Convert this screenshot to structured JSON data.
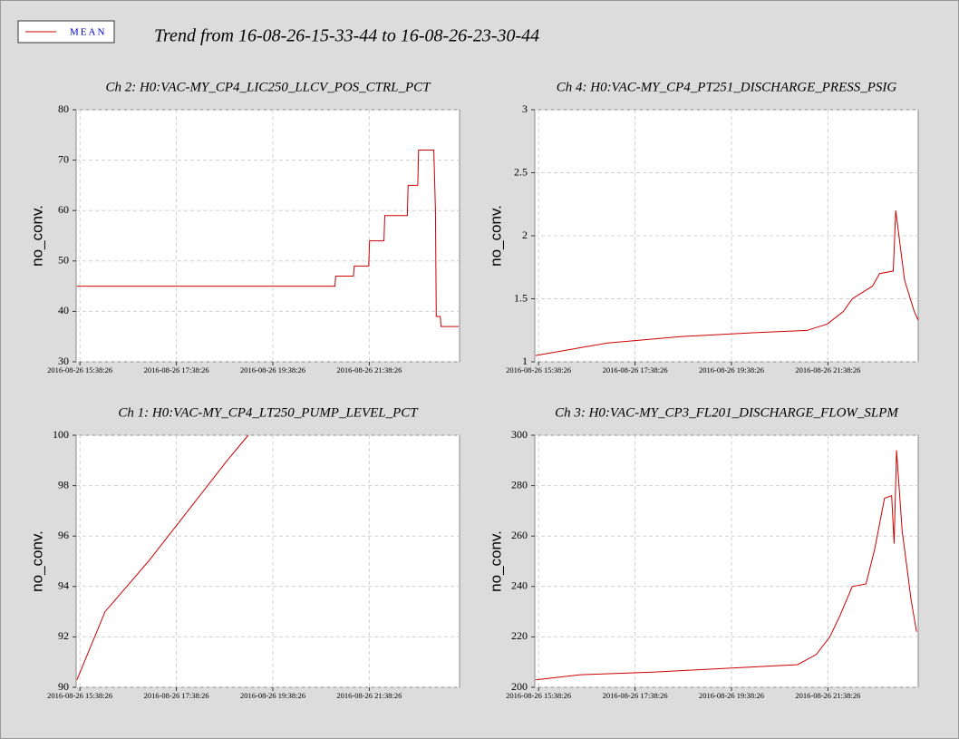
{
  "title": "Trend from 16-08-26-15-33-44 to 16-08-26-23-30-44",
  "chart_data": [
    {
      "type": "line",
      "title": "Ch 2: H0:VAC-MY_CP4_LIC250_LLCV_POS_CTRL_PCT",
      "ylabel": "no_conv.",
      "xlim": [
        "2016-08-26 15:33:44",
        "2016-08-26 23:30:44"
      ],
      "xticks": [
        "2016-08-26 15:38:26",
        "2016-08-26 17:38:26",
        "2016-08-26 19:38:26",
        "2016-08-26 21:38:26"
      ],
      "ylim": [
        30,
        80
      ],
      "yticks": [
        30,
        40,
        50,
        60,
        70,
        80
      ],
      "grid": true,
      "series": [
        {
          "name": "MEAN",
          "color": "#cc0000",
          "x": [
            "2016-08-26 15:34:44",
            "2016-08-26 20:55:44",
            "2016-08-26 20:56:44",
            "2016-08-26 21:18:44",
            "2016-08-26 21:19:44",
            "2016-08-26 21:37:44",
            "2016-08-26 21:38:44",
            "2016-08-26 21:56:44",
            "2016-08-26 21:57:44",
            "2016-08-26 22:25:44",
            "2016-08-26 22:26:44",
            "2016-08-26 22:38:44",
            "2016-08-26 22:39:44",
            "2016-08-26 22:58:44",
            "2016-08-26 23:00:44",
            "2016-08-26 23:01:44",
            "2016-08-26 23:06:44",
            "2016-08-26 23:07:44",
            "2016-08-26 23:29:44"
          ],
          "values": [
            45,
            45,
            47,
            47,
            49,
            49,
            54,
            54,
            59,
            59,
            65,
            65,
            72,
            72,
            60,
            39,
            39,
            37,
            37
          ]
        }
      ]
    },
    {
      "type": "line",
      "title": "Ch 4: H0:VAC-MY_CP4_PT251_DISCHARGE_PRESS_PSIG",
      "ylabel": "no_conv.",
      "xlim": [
        "2016-08-26 15:33:44",
        "2016-08-26 23:30:44"
      ],
      "xticks": [
        "2016-08-26 15:38:26",
        "2016-08-26 17:38:26",
        "2016-08-26 19:38:26",
        "2016-08-26 21:38:26"
      ],
      "ylim": [
        1,
        3
      ],
      "yticks": [
        1,
        1.5,
        2,
        2.5,
        3
      ],
      "grid": true,
      "series": [
        {
          "name": "MEAN",
          "color": "#cc0000",
          "x": [
            "2016-08-26 15:34:44",
            "2016-08-26 16:19:44",
            "2016-08-26 17:04:44",
            "2016-08-26 18:34:44",
            "2016-08-26 20:04:44",
            "2016-08-26 21:12:44",
            "2016-08-26 21:37:44",
            "2016-08-26 21:57:44",
            "2016-08-26 22:08:44",
            "2016-08-26 22:33:44",
            "2016-08-26 22:42:44",
            "2016-08-26 22:59:44",
            "2016-08-26 23:02:44",
            "2016-08-26 23:13:44",
            "2016-08-26 23:25:44",
            "2016-08-26 23:30:44"
          ],
          "values": [
            1.05,
            1.1,
            1.15,
            1.2,
            1.23,
            1.25,
            1.3,
            1.4,
            1.5,
            1.6,
            1.7,
            1.72,
            2.2,
            1.65,
            1.4,
            1.33
          ]
        }
      ]
    },
    {
      "type": "line",
      "title": "Ch 1: H0:VAC-MY_CP4_LT250_PUMP_LEVEL_PCT",
      "ylabel": "no_conv.",
      "xlim": [
        "2016-08-26 15:33:44",
        "2016-08-26 23:30:44"
      ],
      "xticks": [
        "2016-08-26 15:38:26",
        "2016-08-26 17:38:26",
        "2016-08-26 19:38:26",
        "2016-08-26 21:38:26"
      ],
      "ylim": [
        90,
        100
      ],
      "yticks": [
        90,
        92,
        94,
        96,
        98,
        100
      ],
      "grid": true,
      "series": [
        {
          "name": "MEAN",
          "color": "#cc0000",
          "x": [
            "2016-08-26 15:34:44",
            "2016-08-26 16:09:44",
            "2016-08-26 17:03:44",
            "2016-08-26 17:52:44",
            "2016-08-26 18:41:44",
            "2016-08-26 19:07:44"
          ],
          "values": [
            90.3,
            93,
            95,
            97,
            99,
            100
          ]
        }
      ]
    },
    {
      "type": "line",
      "title": "Ch 3: H0:VAC-MY_CP3_FL201_DISCHARGE_FLOW_SLPM",
      "ylabel": "no_conv.",
      "xlim": [
        "2016-08-26 15:33:44",
        "2016-08-26 23:30:44"
      ],
      "xticks": [
        "2016-08-26 15:38:26",
        "2016-08-26 17:38:26",
        "2016-08-26 19:38:26",
        "2016-08-26 21:38:26"
      ],
      "ylim": [
        200,
        300
      ],
      "yticks": [
        200,
        220,
        240,
        260,
        280,
        300
      ],
      "grid": true,
      "series": [
        {
          "name": "MEAN",
          "color": "#cc0000",
          "x": [
            "2016-08-26 15:34:44",
            "2016-08-26 16:30:44",
            "2016-08-26 18:00:44",
            "2016-08-26 19:00:44",
            "2016-08-26 20:00:44",
            "2016-08-26 21:00:44",
            "2016-08-26 21:23:44",
            "2016-08-26 21:40:44",
            "2016-08-26 21:52:44",
            "2016-08-26 22:08:44",
            "2016-08-26 22:25:44",
            "2016-08-26 22:36:44",
            "2016-08-26 22:48:44",
            "2016-08-26 22:57:44",
            "2016-08-26 23:00:44",
            "2016-08-26 23:03:44",
            "2016-08-26 23:10:44",
            "2016-08-26 23:15:44",
            "2016-08-26 23:21:44",
            "2016-08-26 23:28:44"
          ],
          "values": [
            203,
            205,
            206,
            207,
            208,
            209,
            213,
            220,
            228,
            240,
            241,
            255,
            275,
            276,
            257,
            294,
            262,
            250,
            235,
            222
          ]
        }
      ]
    }
  ]
}
